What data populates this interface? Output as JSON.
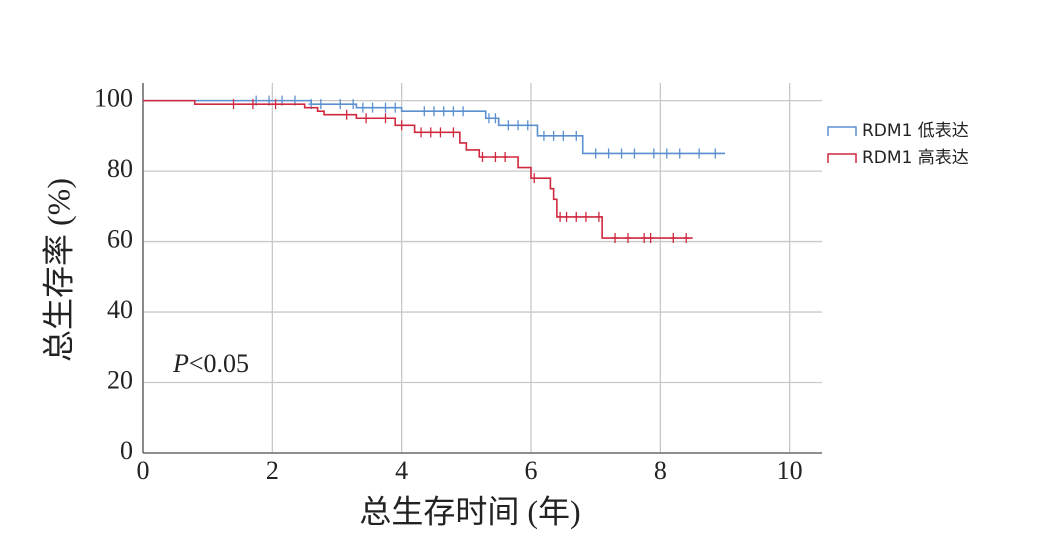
{
  "chart_data": {
    "type": "step",
    "x_label": "总生存时间 (年)",
    "y_label": "总生存率 (%)",
    "p_symbol": "P",
    "p_text": "<0.05",
    "xlim": [
      0,
      10.5
    ],
    "ylim": [
      0,
      105
    ],
    "xticks": [
      0,
      2,
      4,
      6,
      8,
      10
    ],
    "yticks": [
      0,
      20,
      40,
      60,
      80,
      100
    ],
    "grid": true,
    "legend": "right",
    "series": [
      {
        "name": "RDM1 低表达",
        "color": "#5b8fd0",
        "x": [
          0,
          2.6,
          3.3,
          4.0,
          5.3,
          5.5,
          6.1,
          6.8,
          9.0
        ],
        "values": [
          100,
          99,
          98,
          97,
          95,
          93,
          90,
          85,
          85
        ],
        "censored": {
          "x": [
            1.75,
            1.95,
            2.15,
            2.35,
            2.6,
            2.75,
            3.05,
            3.25,
            3.4,
            3.55,
            3.75,
            3.9,
            4.35,
            4.5,
            4.65,
            4.8,
            4.95,
            5.35,
            5.45,
            5.65,
            5.8,
            5.95,
            6.2,
            6.35,
            6.5,
            6.7,
            7.0,
            7.2,
            7.4,
            7.6,
            7.9,
            8.1,
            8.3,
            8.6,
            8.85
          ],
          "y": [
            100,
            100,
            100,
            100,
            99,
            99,
            99,
            99,
            98,
            98,
            98,
            98,
            97,
            97,
            97,
            97,
            97,
            95,
            95,
            93,
            93,
            93,
            90,
            90,
            90,
            90,
            85,
            85,
            85,
            85,
            85,
            85,
            85,
            85,
            85
          ]
        }
      },
      {
        "name": "RDM1 高表达",
        "color": "#d0283f",
        "x": [
          0,
          0.8,
          2.5,
          2.7,
          2.8,
          3.3,
          3.9,
          4.2,
          4.9,
          5.0,
          5.2,
          5.8,
          6.0,
          6.3,
          6.35,
          6.4,
          7.1,
          8.5
        ],
        "values": [
          100,
          99,
          98,
          97,
          96,
          95,
          93,
          91,
          88,
          86,
          84,
          81,
          78,
          75,
          72,
          67,
          61,
          61
        ],
        "censored": {
          "x": [
            1.4,
            1.7,
            2.05,
            3.15,
            3.45,
            3.75,
            4.0,
            4.3,
            4.45,
            4.6,
            4.8,
            5.25,
            5.45,
            5.6,
            6.05,
            6.45,
            6.55,
            6.7,
            6.85,
            7.05,
            7.3,
            7.5,
            7.75,
            7.85,
            8.2,
            8.4
          ],
          "y": [
            99,
            99,
            99,
            96,
            95,
            95,
            93,
            91,
            91,
            91,
            91,
            84,
            84,
            84,
            78,
            67,
            67,
            67,
            67,
            67,
            61,
            61,
            61,
            61,
            61,
            61
          ]
        }
      }
    ]
  }
}
